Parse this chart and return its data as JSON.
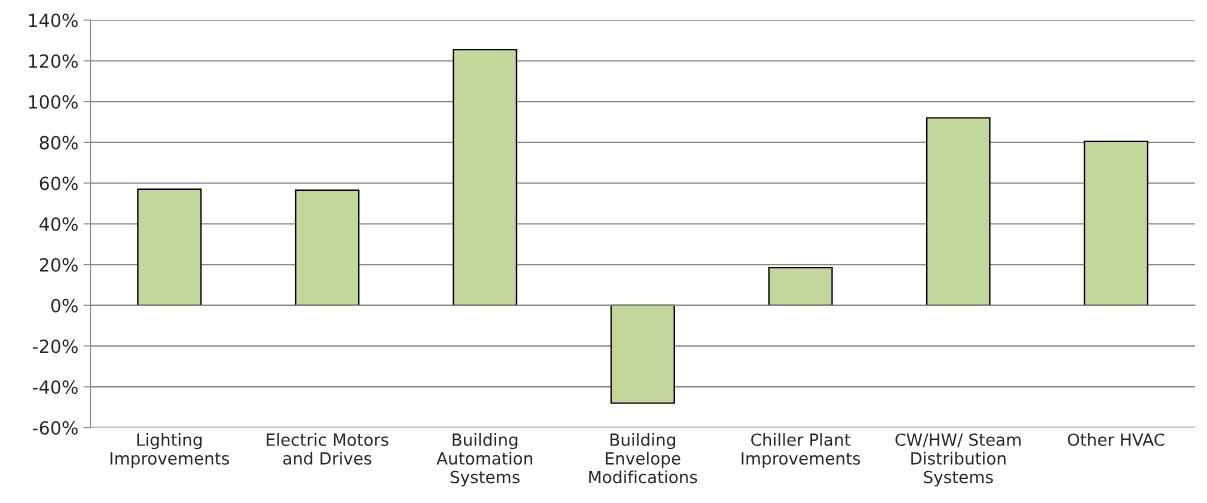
{
  "chart_data": {
    "type": "bar",
    "categories": [
      "Lighting Improvements",
      "Electric Motors and Drives",
      "Building Automation Systems",
      "Building Envelope Modifications",
      "Chiller Plant Improvements",
      "CW/HW/ Steam Distribution Systems",
      "Other HVAC"
    ],
    "values": [
      57,
      56.5,
      125.5,
      -48,
      18.5,
      92,
      80.5
    ],
    "color": "#c3d69b",
    "ylim": [
      -60,
      140
    ],
    "yticks": [
      {
        "value": -60,
        "label": "-60%"
      },
      {
        "value": -40,
        "label": "-40%"
      },
      {
        "value": -20,
        "label": "-20%"
      },
      {
        "value": 0,
        "label": "0%"
      },
      {
        "value": 20,
        "label": "20%"
      },
      {
        "value": 40,
        "label": "40%"
      },
      {
        "value": 60,
        "label": "60%"
      },
      {
        "value": 80,
        "label": "80%"
      },
      {
        "value": 100,
        "label": "100%"
      },
      {
        "value": 120,
        "label": "120%"
      },
      {
        "value": 140,
        "label": "140%"
      }
    ],
    "grid": "y"
  }
}
